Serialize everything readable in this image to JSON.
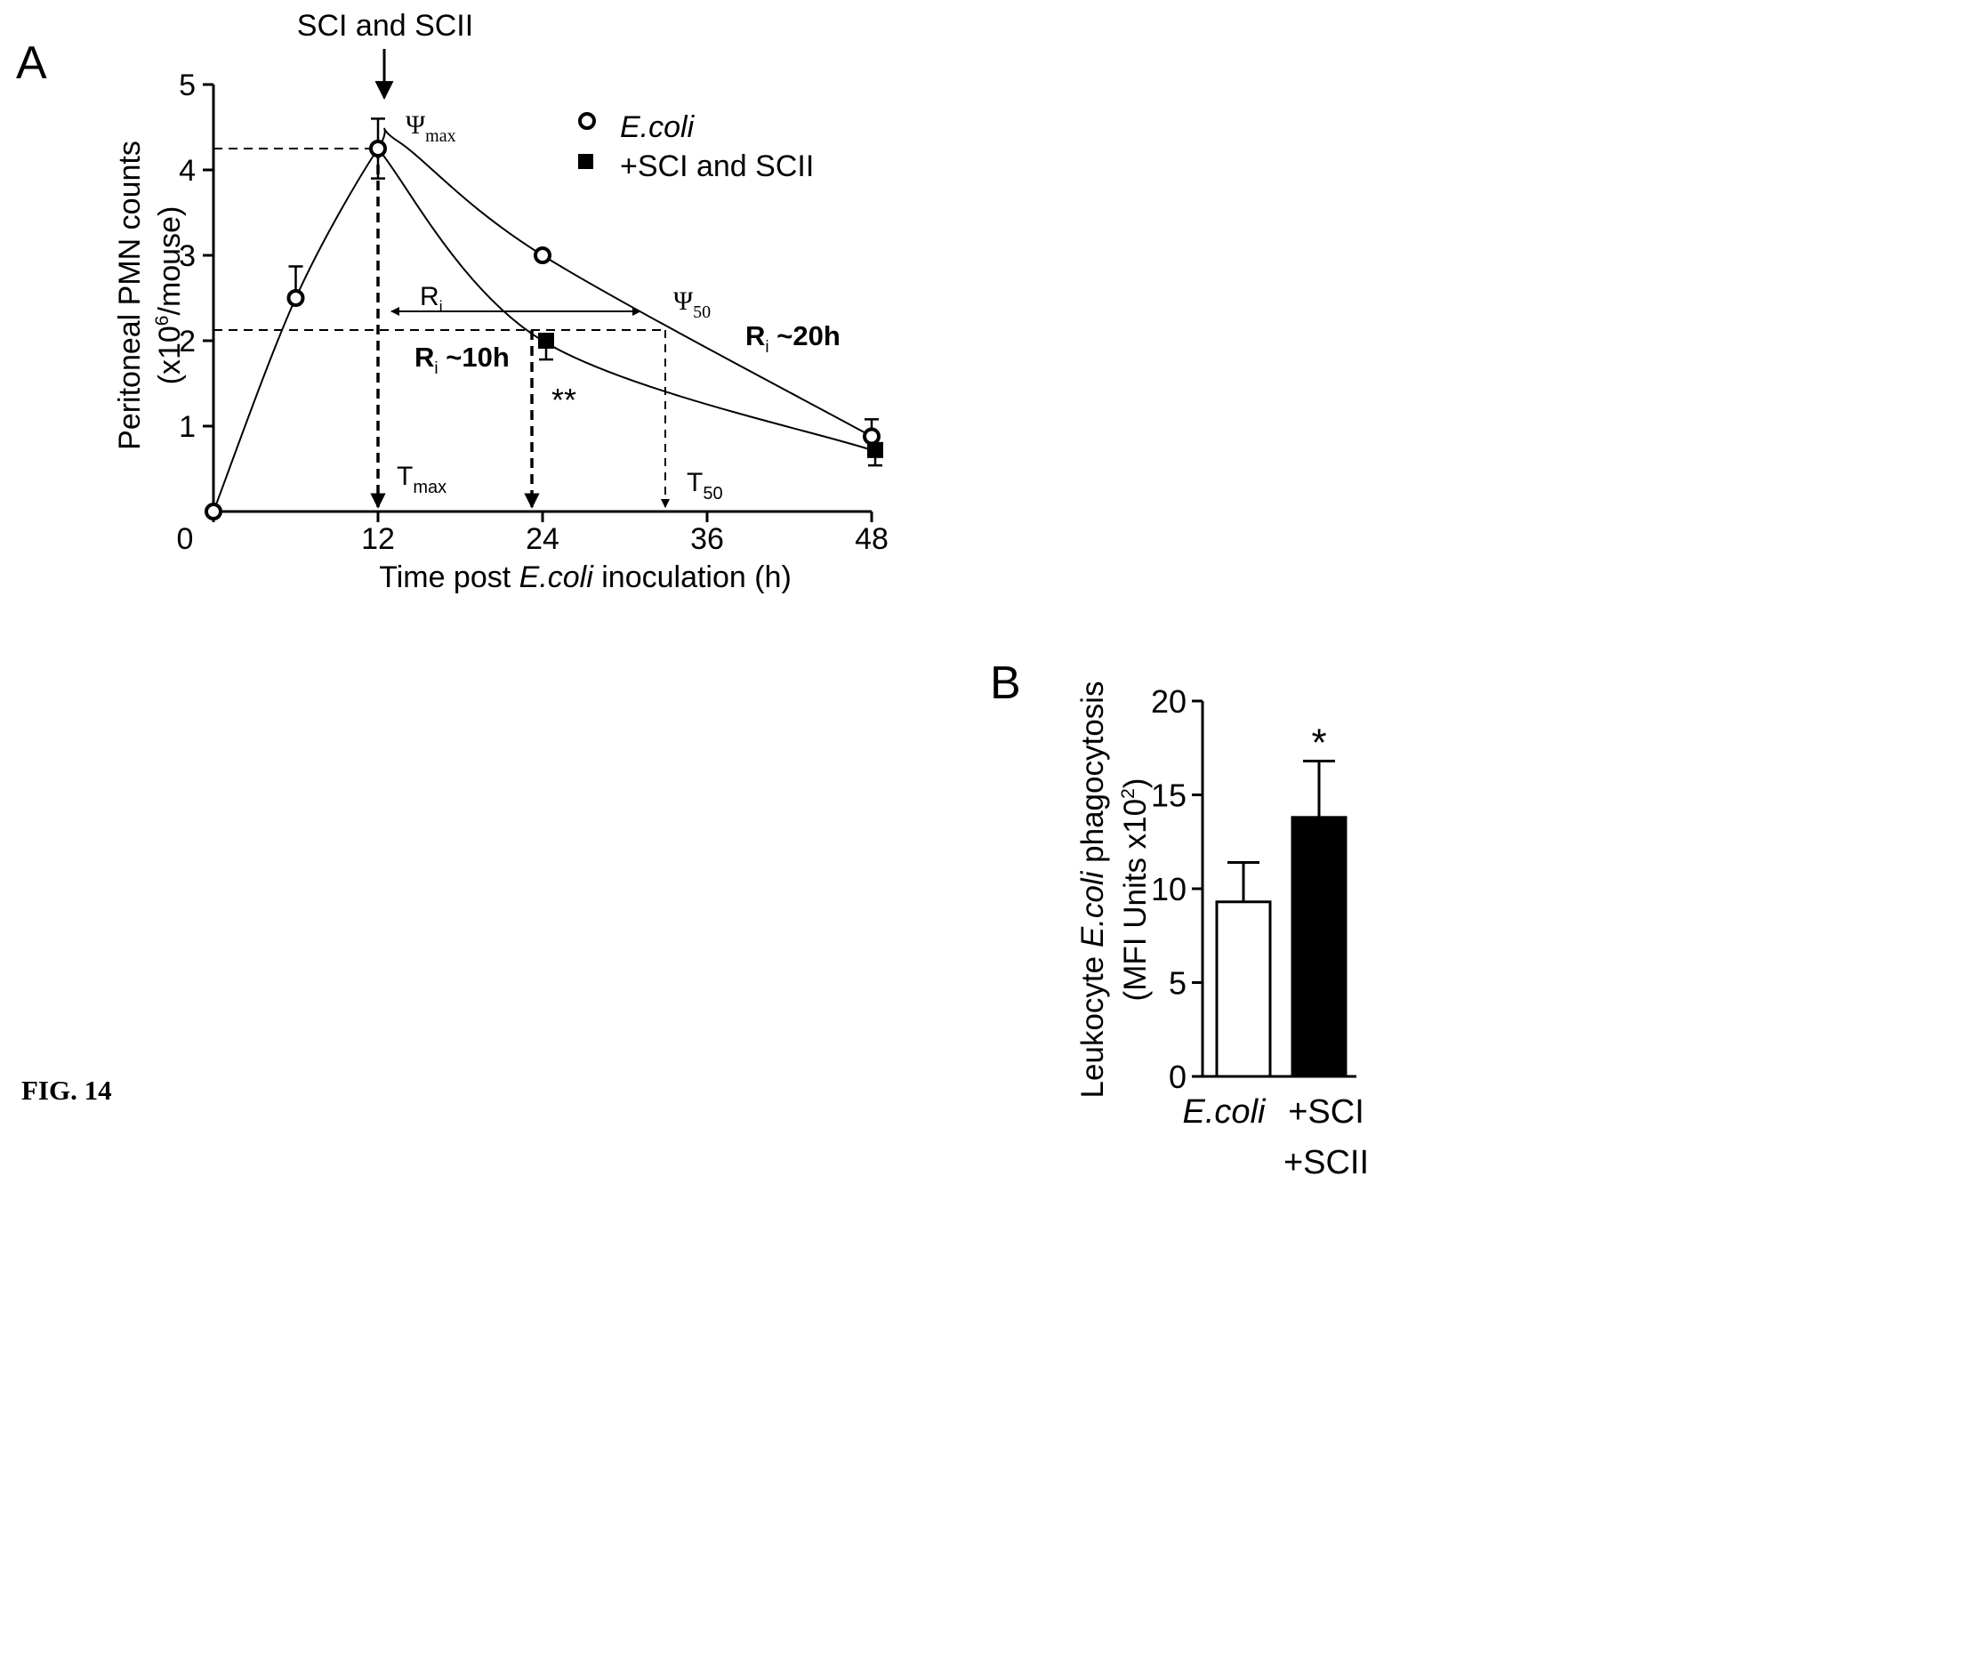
{
  "figure_label": "FIG. 14",
  "chart_data": [
    {
      "panel": "A",
      "type": "line",
      "xlabel_parts": [
        "Time post ",
        "E.coli",
        " inoculation (h)"
      ],
      "ylabel": "Peritoneal PMN counts",
      "ylabel2_parts": [
        "(x10",
        "6",
        "/mouse)"
      ],
      "xlim": [
        0,
        48
      ],
      "ylim": [
        0,
        5
      ],
      "x_ticks": [
        0,
        12,
        24,
        36,
        48
      ],
      "x_tick_labels": [
        "0",
        "12",
        "24",
        "36",
        "48"
      ],
      "y_ticks": [
        1,
        2,
        3,
        4,
        5
      ],
      "y_tick_labels": [
        "1",
        "2",
        "3",
        "4",
        "5"
      ],
      "legend_position": "top-right",
      "series": [
        {
          "name": "E.coli",
          "marker": "open-circle",
          "x": [
            0,
            6,
            12,
            24,
            48
          ],
          "y": [
            0.0,
            2.5,
            4.25,
            3.0,
            0.88
          ],
          "err": [
            0,
            0.37,
            0.35,
            0,
            0.2
          ]
        },
        {
          "name": "+SCI and SCII",
          "marker": "filled-square",
          "x": [
            12,
            24,
            48
          ],
          "y": [
            4.25,
            2.0,
            0.72
          ],
          "err": [
            0.35,
            0.22,
            0.18
          ]
        }
      ],
      "annotations": {
        "treatment_label": "SCI and SCII",
        "psi_max": {
          "main": "Ψ",
          "sub": "max"
        },
        "psi_50": {
          "main": "Ψ",
          "sub": "50"
        },
        "t_max": {
          "main": "T",
          "sub": "max"
        },
        "t_50": {
          "main": "T",
          "sub": "50"
        },
        "ri_arrow": {
          "main": "R",
          "sub": "i"
        },
        "ri_short": {
          "main": "R",
          "sub": "i",
          "tail": " ~10h"
        },
        "ri_long": {
          "main": "R",
          "sub": "i",
          "tail": " ~20h"
        },
        "significance": "**"
      }
    },
    {
      "panel": "B",
      "type": "bar",
      "categories": [
        "E.coli",
        "+SCI +SCII"
      ],
      "category_lines": [
        [
          "E.coli"
        ],
        [
          "+SCI",
          "+SCII"
        ]
      ],
      "values": [
        9.3,
        13.8
      ],
      "errors": [
        2.1,
        3.0
      ],
      "fills": [
        "#ffffff",
        "#000000"
      ],
      "ylabel_parts": [
        "Leukocyte ",
        "E.coli",
        " phagocytosis"
      ],
      "ylabel2_parts": [
        "(MFI Units x10",
        "2",
        ")"
      ],
      "ylim": [
        0,
        20
      ],
      "y_ticks": [
        0,
        5,
        10,
        15,
        20
      ],
      "y_tick_labels": [
        "0",
        "5",
        "10",
        "15",
        "20"
      ],
      "significance": [
        "",
        "*"
      ]
    }
  ]
}
